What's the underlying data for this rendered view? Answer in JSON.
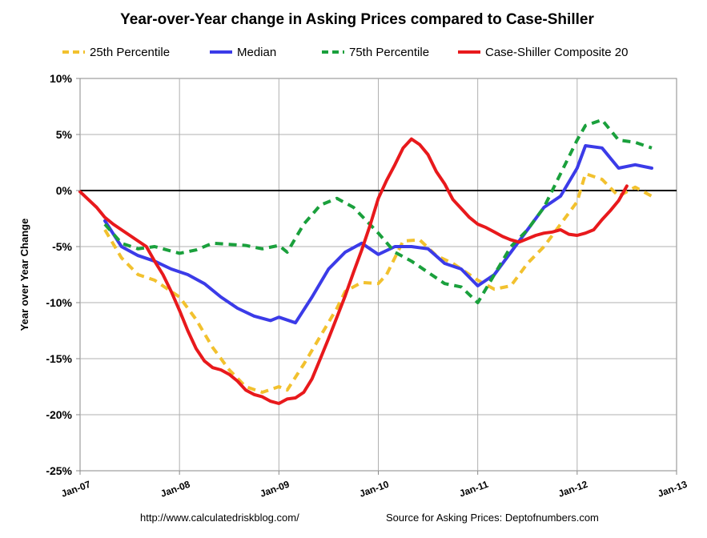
{
  "chart_data": {
    "type": "line",
    "title": "Year-over-Year change in Asking Prices compared to Case-Shiller",
    "ylabel": "Year over Year Change",
    "xlabel": "",
    "ylim": [
      -25,
      10
    ],
    "xlim": [
      "2007-01",
      "2013-01"
    ],
    "grid": true,
    "legend_position": "top",
    "yticks": [
      {
        "value": 10,
        "label": "10%"
      },
      {
        "value": 5,
        "label": "5%"
      },
      {
        "value": 0,
        "label": "0%"
      },
      {
        "value": -5,
        "label": "-5%"
      },
      {
        "value": -10,
        "label": "-10%"
      },
      {
        "value": -15,
        "label": "-15%"
      },
      {
        "value": -20,
        "label": "-20%"
      },
      {
        "value": -25,
        "label": "-25%"
      }
    ],
    "xticks": [
      {
        "value": "2007-01",
        "label": "Jan-07"
      },
      {
        "value": "2008-01",
        "label": "Jan-08"
      },
      {
        "value": "2009-01",
        "label": "Jan-09"
      },
      {
        "value": "2010-01",
        "label": "Jan-10"
      },
      {
        "value": "2011-01",
        "label": "Jan-11"
      },
      {
        "value": "2012-01",
        "label": "Jan-12"
      },
      {
        "value": "2013-01",
        "label": "Jan-13"
      }
    ],
    "series": [
      {
        "name": "25th Percentile",
        "color": "#f2c12e",
        "style": "dashed",
        "points": [
          [
            "2007-04",
            -3.5
          ],
          [
            "2007-06",
            -6.0
          ],
          [
            "2007-08",
            -7.5
          ],
          [
            "2007-10",
            -8.0
          ],
          [
            "2008-01",
            -9.5
          ],
          [
            "2008-03",
            -11.5
          ],
          [
            "2008-05",
            -14.0
          ],
          [
            "2008-07",
            -16.0
          ],
          [
            "2008-09",
            -17.5
          ],
          [
            "2008-11",
            -18.0
          ],
          [
            "2009-01",
            -17.5
          ],
          [
            "2009-02",
            -17.8
          ],
          [
            "2009-04",
            -15.5
          ],
          [
            "2009-06",
            -13.0
          ],
          [
            "2009-08",
            -10.5
          ],
          [
            "2009-09",
            -9.0
          ],
          [
            "2009-11",
            -8.2
          ],
          [
            "2010-01",
            -8.3
          ],
          [
            "2010-02",
            -7.5
          ],
          [
            "2010-04",
            -4.5
          ],
          [
            "2010-06",
            -4.4
          ],
          [
            "2010-08",
            -5.8
          ],
          [
            "2010-10",
            -6.5
          ],
          [
            "2011-01",
            -8.0
          ],
          [
            "2011-03",
            -8.8
          ],
          [
            "2011-05",
            -8.5
          ],
          [
            "2011-07",
            -6.5
          ],
          [
            "2011-09",
            -5.0
          ],
          [
            "2011-11",
            -3.0
          ],
          [
            "2012-01",
            -1.0
          ],
          [
            "2012-02",
            1.5
          ],
          [
            "2012-04",
            1.0
          ],
          [
            "2012-06",
            -0.5
          ],
          [
            "2012-08",
            0.3
          ],
          [
            "2012-10",
            -0.5
          ]
        ]
      },
      {
        "name": "Median",
        "color": "#3b3be8",
        "style": "solid",
        "points": [
          [
            "2007-04",
            -2.7
          ],
          [
            "2007-06",
            -5.0
          ],
          [
            "2007-08",
            -5.8
          ],
          [
            "2007-10",
            -6.3
          ],
          [
            "2007-12",
            -7.0
          ],
          [
            "2008-02",
            -7.5
          ],
          [
            "2008-04",
            -8.3
          ],
          [
            "2008-06",
            -9.5
          ],
          [
            "2008-08",
            -10.5
          ],
          [
            "2008-10",
            -11.2
          ],
          [
            "2008-12",
            -11.6
          ],
          [
            "2009-01",
            -11.3
          ],
          [
            "2009-03",
            -11.8
          ],
          [
            "2009-05",
            -9.5
          ],
          [
            "2009-07",
            -7.0
          ],
          [
            "2009-09",
            -5.5
          ],
          [
            "2009-11",
            -4.7
          ],
          [
            "2010-01",
            -5.7
          ],
          [
            "2010-03",
            -5.0
          ],
          [
            "2010-05",
            -5.0
          ],
          [
            "2010-07",
            -5.2
          ],
          [
            "2010-09",
            -6.5
          ],
          [
            "2010-11",
            -7.0
          ],
          [
            "2011-01",
            -8.5
          ],
          [
            "2011-03",
            -7.5
          ],
          [
            "2011-05",
            -5.5
          ],
          [
            "2011-07",
            -3.5
          ],
          [
            "2011-09",
            -1.5
          ],
          [
            "2011-11",
            -0.5
          ],
          [
            "2012-01",
            2.0
          ],
          [
            "2012-02",
            4.0
          ],
          [
            "2012-04",
            3.8
          ],
          [
            "2012-06",
            2.0
          ],
          [
            "2012-08",
            2.3
          ],
          [
            "2012-10",
            2.0
          ]
        ]
      },
      {
        "name": "75th Percentile",
        "color": "#1aa03c",
        "style": "dashed",
        "points": [
          [
            "2007-04",
            -3.0
          ],
          [
            "2007-06",
            -4.7
          ],
          [
            "2007-08",
            -5.2
          ],
          [
            "2007-10",
            -5.0
          ],
          [
            "2008-01",
            -5.6
          ],
          [
            "2008-03",
            -5.3
          ],
          [
            "2008-05",
            -4.7
          ],
          [
            "2008-07",
            -4.8
          ],
          [
            "2008-09",
            -4.9
          ],
          [
            "2008-11",
            -5.2
          ],
          [
            "2009-01",
            -4.9
          ],
          [
            "2009-02",
            -5.5
          ],
          [
            "2009-04",
            -3.0
          ],
          [
            "2009-06",
            -1.3
          ],
          [
            "2009-08",
            -0.7
          ],
          [
            "2009-10",
            -1.5
          ],
          [
            "2010-01",
            -3.8
          ],
          [
            "2010-03",
            -5.5
          ],
          [
            "2010-05",
            -6.3
          ],
          [
            "2010-07",
            -7.3
          ],
          [
            "2010-09",
            -8.3
          ],
          [
            "2010-11",
            -8.6
          ],
          [
            "2011-01",
            -10.0
          ],
          [
            "2011-03",
            -7.5
          ],
          [
            "2011-05",
            -5.0
          ],
          [
            "2011-07",
            -3.5
          ],
          [
            "2011-09",
            -1.5
          ],
          [
            "2011-11",
            1.5
          ],
          [
            "2012-01",
            4.5
          ],
          [
            "2012-02",
            5.8
          ],
          [
            "2012-04",
            6.3
          ],
          [
            "2012-06",
            4.5
          ],
          [
            "2012-08",
            4.3
          ],
          [
            "2012-10",
            3.8
          ]
        ]
      },
      {
        "name": "Case-Shiller Composite 20",
        "color": "#e8191c",
        "style": "solid",
        "points": [
          [
            "2007-01",
            -0.1
          ],
          [
            "2007-02",
            -0.8
          ],
          [
            "2007-03",
            -1.5
          ],
          [
            "2007-04",
            -2.4
          ],
          [
            "2007-05",
            -3.0
          ],
          [
            "2007-06",
            -3.5
          ],
          [
            "2007-07",
            -4.0
          ],
          [
            "2007-08",
            -4.5
          ],
          [
            "2007-09",
            -5.0
          ],
          [
            "2007-10",
            -6.3
          ],
          [
            "2007-11",
            -7.5
          ],
          [
            "2007-12",
            -9.0
          ],
          [
            "2008-01",
            -10.7
          ],
          [
            "2008-02",
            -12.5
          ],
          [
            "2008-03",
            -14.1
          ],
          [
            "2008-04",
            -15.2
          ],
          [
            "2008-05",
            -15.8
          ],
          [
            "2008-06",
            -16.0
          ],
          [
            "2008-07",
            -16.4
          ],
          [
            "2008-08",
            -17.0
          ],
          [
            "2008-09",
            -17.8
          ],
          [
            "2008-10",
            -18.2
          ],
          [
            "2008-11",
            -18.4
          ],
          [
            "2008-12",
            -18.8
          ],
          [
            "2009-01",
            -19.0
          ],
          [
            "2009-02",
            -18.6
          ],
          [
            "2009-03",
            -18.5
          ],
          [
            "2009-04",
            -18.0
          ],
          [
            "2009-05",
            -16.8
          ],
          [
            "2009-06",
            -15.0
          ],
          [
            "2009-07",
            -13.2
          ],
          [
            "2009-08",
            -11.3
          ],
          [
            "2009-09",
            -9.4
          ],
          [
            "2009-10",
            -7.3
          ],
          [
            "2009-11",
            -5.3
          ],
          [
            "2009-12",
            -3.1
          ],
          [
            "2010-01",
            -0.7
          ],
          [
            "2010-02",
            0.9
          ],
          [
            "2010-03",
            2.3
          ],
          [
            "2010-04",
            3.8
          ],
          [
            "2010-05",
            4.6
          ],
          [
            "2010-06",
            4.1
          ],
          [
            "2010-07",
            3.2
          ],
          [
            "2010-08",
            1.7
          ],
          [
            "2010-09",
            0.6
          ],
          [
            "2010-10",
            -0.8
          ],
          [
            "2010-11",
            -1.6
          ],
          [
            "2010-12",
            -2.4
          ],
          [
            "2011-01",
            -3.0
          ],
          [
            "2011-02",
            -3.3
          ],
          [
            "2011-03",
            -3.7
          ],
          [
            "2011-04",
            -4.1
          ],
          [
            "2011-05",
            -4.4
          ],
          [
            "2011-06",
            -4.6
          ],
          [
            "2011-07",
            -4.3
          ],
          [
            "2011-08",
            -4.0
          ],
          [
            "2011-09",
            -3.8
          ],
          [
            "2011-10",
            -3.7
          ],
          [
            "2011-11",
            -3.5
          ],
          [
            "2011-12",
            -3.9
          ],
          [
            "2012-01",
            -4.0
          ],
          [
            "2012-02",
            -3.8
          ],
          [
            "2012-03",
            -3.5
          ],
          [
            "2012-04",
            -2.6
          ],
          [
            "2012-05",
            -1.8
          ],
          [
            "2012-06",
            -0.9
          ],
          [
            "2012-07",
            0.4
          ]
        ]
      }
    ]
  },
  "footer": {
    "left": "http://www.calculatedriskblog.com/",
    "right": "Source for Asking Prices: Deptofnumbers.com"
  }
}
